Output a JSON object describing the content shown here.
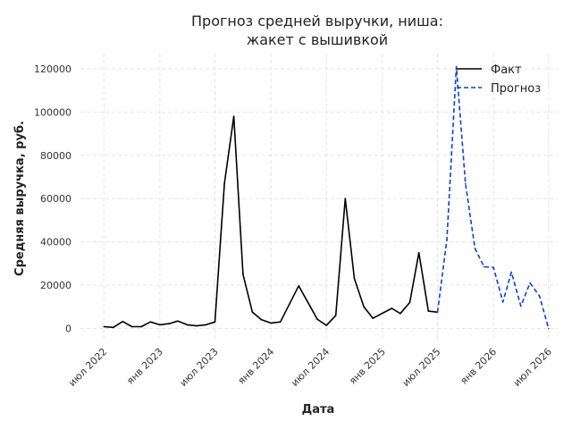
{
  "chart_data": {
    "type": "line",
    "title_lines": [
      "Прогноз средней выручки, ниша:",
      "жакет с вышивкой"
    ],
    "xlabel": "Дата",
    "ylabel": "Средняя выручка, руб.",
    "grid": true,
    "legend_position": "top-right",
    "ylim": [
      -6000,
      127000
    ],
    "xlim": [
      "2022-04-15",
      "2026-07-31"
    ],
    "yticks": [
      {
        "value": 0,
        "label": "0"
      },
      {
        "value": 20000,
        "label": "20000"
      },
      {
        "value": 40000,
        "label": "40000"
      },
      {
        "value": 60000,
        "label": "60000"
      },
      {
        "value": 80000,
        "label": "80000"
      },
      {
        "value": 100000,
        "label": "100000"
      },
      {
        "value": 120000,
        "label": "120000"
      }
    ],
    "xticks": [
      {
        "date": "2022-07-01",
        "label": "июл 2022"
      },
      {
        "date": "2023-01-01",
        "label": "янв 2023"
      },
      {
        "date": "2023-07-01",
        "label": "июл 2023"
      },
      {
        "date": "2024-01-01",
        "label": "янв 2024"
      },
      {
        "date": "2024-07-01",
        "label": "июл 2024"
      },
      {
        "date": "2025-01-01",
        "label": "янв 2025"
      },
      {
        "date": "2025-07-01",
        "label": "июл 2025"
      },
      {
        "date": "2026-01-01",
        "label": "янв 2026"
      },
      {
        "date": "2026-07-01",
        "label": "июл 2026"
      }
    ],
    "series": [
      {
        "name": "Факт",
        "color": "#000000",
        "dash": "solid",
        "points": [
          {
            "x": "2022-07-01",
            "y": 800
          },
          {
            "x": "2022-08-01",
            "y": 500
          },
          {
            "x": "2022-09-01",
            "y": 3200
          },
          {
            "x": "2022-10-01",
            "y": 800
          },
          {
            "x": "2022-11-01",
            "y": 800
          },
          {
            "x": "2022-12-01",
            "y": 3000
          },
          {
            "x": "2023-01-01",
            "y": 1700
          },
          {
            "x": "2023-02-01",
            "y": 2200
          },
          {
            "x": "2023-03-01",
            "y": 3400
          },
          {
            "x": "2023-04-01",
            "y": 1700
          },
          {
            "x": "2023-05-01",
            "y": 1200
          },
          {
            "x": "2023-06-01",
            "y": 1700
          },
          {
            "x": "2023-07-01",
            "y": 3000
          },
          {
            "x": "2023-08-01",
            "y": 67000
          },
          {
            "x": "2023-09-01",
            "y": 98000
          },
          {
            "x": "2023-10-01",
            "y": 25000
          },
          {
            "x": "2023-11-01",
            "y": 7500
          },
          {
            "x": "2023-12-01",
            "y": 4000
          },
          {
            "x": "2024-01-01",
            "y": 2500
          },
          {
            "x": "2024-02-01",
            "y": 3000
          },
          {
            "x": "2024-04-01",
            "y": 19700
          },
          {
            "x": "2024-06-01",
            "y": 4300
          },
          {
            "x": "2024-07-01",
            "y": 1400
          },
          {
            "x": "2024-08-01",
            "y": 6000
          },
          {
            "x": "2024-09-01",
            "y": 60000
          },
          {
            "x": "2024-10-01",
            "y": 23000
          },
          {
            "x": "2024-11-01",
            "y": 10000
          },
          {
            "x": "2024-12-01",
            "y": 4700
          },
          {
            "x": "2025-02-01",
            "y": 9300
          },
          {
            "x": "2025-03-01",
            "y": 6900
          },
          {
            "x": "2025-04-01",
            "y": 12000
          },
          {
            "x": "2025-05-01",
            "y": 35000
          },
          {
            "x": "2025-06-01",
            "y": 8000
          },
          {
            "x": "2025-07-01",
            "y": 7500
          }
        ]
      },
      {
        "name": "Прогноз",
        "color": "#0b3fd9",
        "dash": "dashed",
        "points": [
          {
            "x": "2025-07-01",
            "y": 7500
          },
          {
            "x": "2025-08-01",
            "y": 41000
          },
          {
            "x": "2025-09-01",
            "y": 121000
          },
          {
            "x": "2025-10-01",
            "y": 67000
          },
          {
            "x": "2025-11-01",
            "y": 37000
          },
          {
            "x": "2025-12-01",
            "y": 28500
          },
          {
            "x": "2026-01-01",
            "y": 28200
          },
          {
            "x": "2026-02-01",
            "y": 12200
          },
          {
            "x": "2026-03-01",
            "y": 26000
          },
          {
            "x": "2026-04-01",
            "y": 10300
          },
          {
            "x": "2026-05-01",
            "y": 21000
          },
          {
            "x": "2026-06-01",
            "y": 15000
          },
          {
            "x": "2026-07-01",
            "y": 0
          }
        ]
      }
    ]
  }
}
